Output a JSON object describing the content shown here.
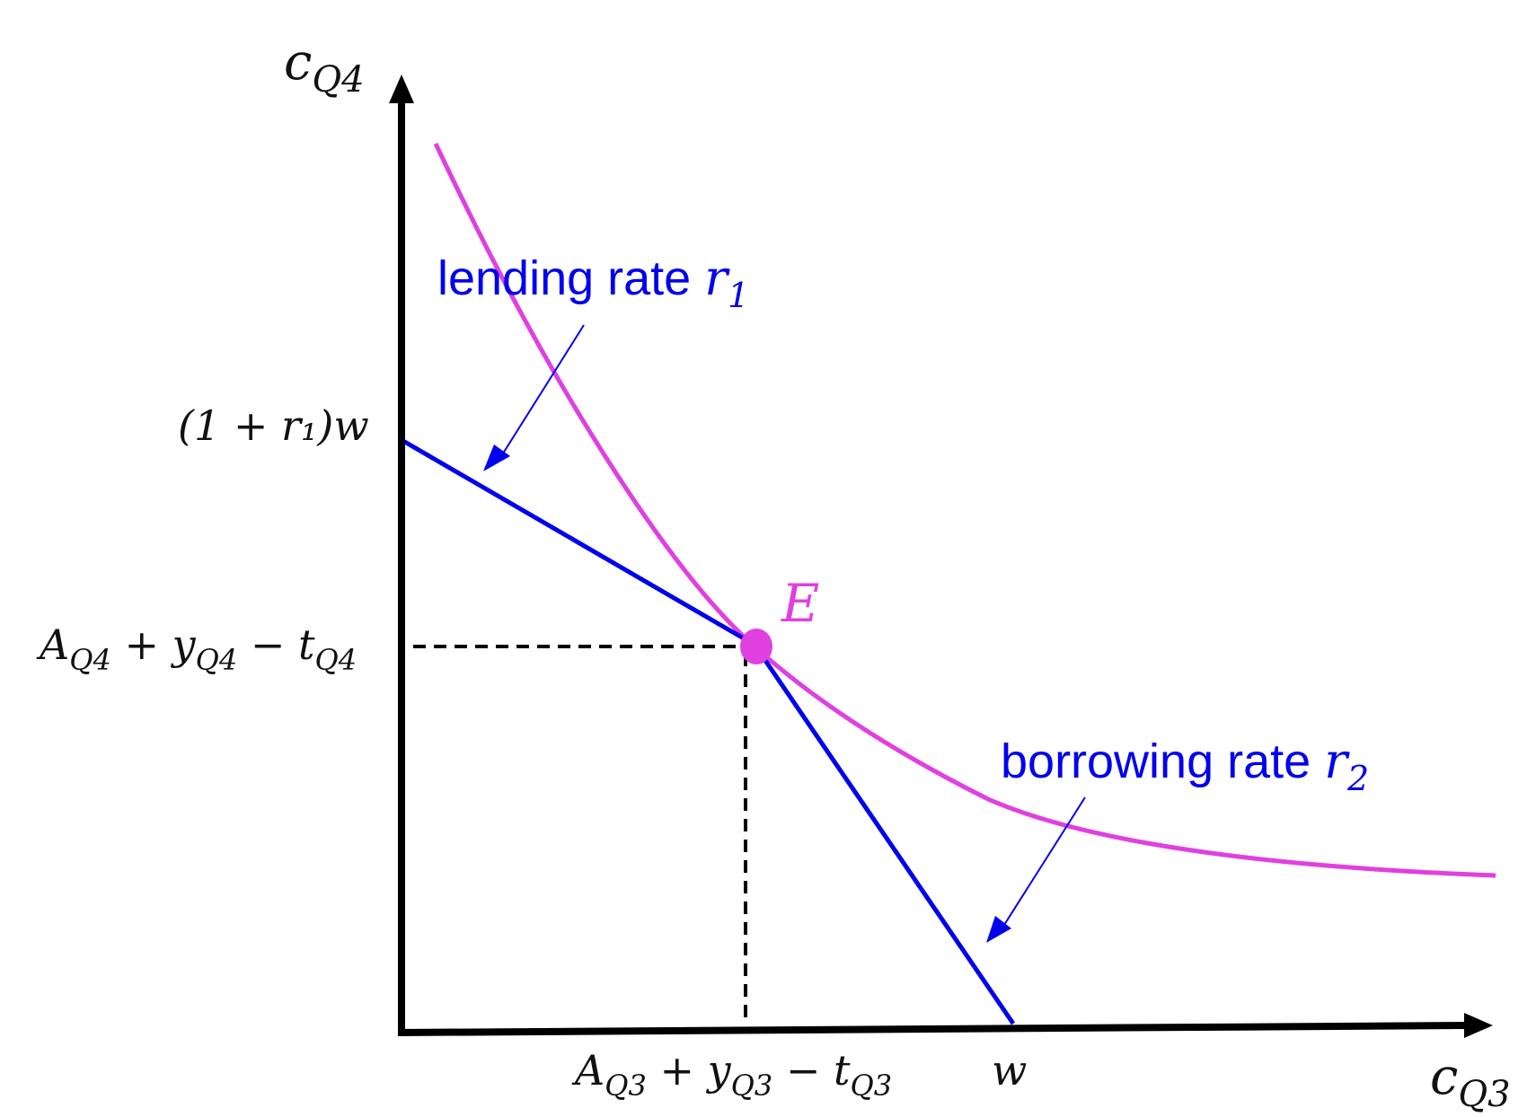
{
  "axes": {
    "y_label": {
      "base": "c",
      "sub": "Q4"
    },
    "x_label": {
      "base": "c",
      "sub": "Q3"
    }
  },
  "y_ticks": {
    "lending_intercept": "(1 + r₁)w",
    "endowment_q4": {
      "A": "A",
      "A_sub": "Q4",
      "y": "y",
      "y_sub": "Q4",
      "t": "t",
      "t_sub": "Q4"
    }
  },
  "x_ticks": {
    "endowment_q3": {
      "A": "A",
      "A_sub": "Q3",
      "y": "y",
      "y_sub": "Q3",
      "t": "t",
      "t_sub": "Q3"
    },
    "w": "w"
  },
  "point": {
    "label": "E"
  },
  "annotations": {
    "lending": {
      "text": "lending rate ",
      "sym": "r",
      "sub": "1"
    },
    "borrowing": {
      "text": "borrowing rate ",
      "sym": "r",
      "sub": "2"
    }
  },
  "colors": {
    "axis": "#000000",
    "budget_line": "#0000ee",
    "indifference_curve": "#e040e0",
    "guide": "#000000"
  }
}
